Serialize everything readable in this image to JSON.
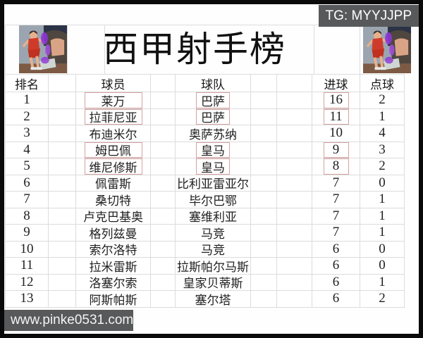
{
  "title": "西甲射手榜",
  "badges": {
    "tg": "TG: MYYJJPP",
    "watermark": "www.pinke0531.com"
  },
  "icons": {
    "left_artwork": "anime-basketball-players-art",
    "right_artwork": "anime-basketball-players-art"
  },
  "colors": {
    "frame_border": "#0a0a0a",
    "badge_bg": "#58595b",
    "grid_line": "#dcdcdc",
    "highlight_box_border": "#d6a2a2",
    "text": "#1f1f1f"
  },
  "table": {
    "headers": [
      "排名",
      "球员",
      "球队",
      "进球",
      "点球"
    ],
    "rows": [
      {
        "rank": "1",
        "player": "莱万",
        "team": "巴萨",
        "goals": "16",
        "penalties": "2",
        "boxed": true
      },
      {
        "rank": "2",
        "player": "拉菲尼亚",
        "team": "巴萨",
        "goals": "11",
        "penalties": "1",
        "boxed": true
      },
      {
        "rank": "3",
        "player": "布迪米尔",
        "team": "奥萨苏纳",
        "goals": "10",
        "penalties": "4",
        "boxed": false
      },
      {
        "rank": "4",
        "player": "姆巴佩",
        "team": "皇马",
        "goals": "9",
        "penalties": "3",
        "boxed": true
      },
      {
        "rank": "5",
        "player": "维尼修斯",
        "team": "皇马",
        "goals": "8",
        "penalties": "2",
        "boxed": true
      },
      {
        "rank": "6",
        "player": "佩雷斯",
        "team": "比利亚雷亚尔",
        "goals": "7",
        "penalties": "0",
        "boxed": false
      },
      {
        "rank": "7",
        "player": "桑切特",
        "team": "毕尔巴鄂",
        "goals": "7",
        "penalties": "1",
        "boxed": false
      },
      {
        "rank": "8",
        "player": "卢克巴基奥",
        "team": "塞维利亚",
        "goals": "7",
        "penalties": "1",
        "boxed": false
      },
      {
        "rank": "9",
        "player": "格列兹曼",
        "team": "马竞",
        "goals": "7",
        "penalties": "1",
        "boxed": false
      },
      {
        "rank": "10",
        "player": "索尔洛特",
        "team": "马竞",
        "goals": "6",
        "penalties": "0",
        "boxed": false
      },
      {
        "rank": "11",
        "player": "拉米雷斯",
        "team": "拉斯帕尔马斯",
        "goals": "6",
        "penalties": "0",
        "boxed": false
      },
      {
        "rank": "12",
        "player": "洛塞尔索",
        "team": "皇家贝蒂斯",
        "goals": "6",
        "penalties": "1",
        "boxed": false
      },
      {
        "rank": "13",
        "player": "阿斯帕斯",
        "team": "塞尔塔",
        "goals": "6",
        "penalties": "2",
        "boxed": false
      }
    ]
  }
}
